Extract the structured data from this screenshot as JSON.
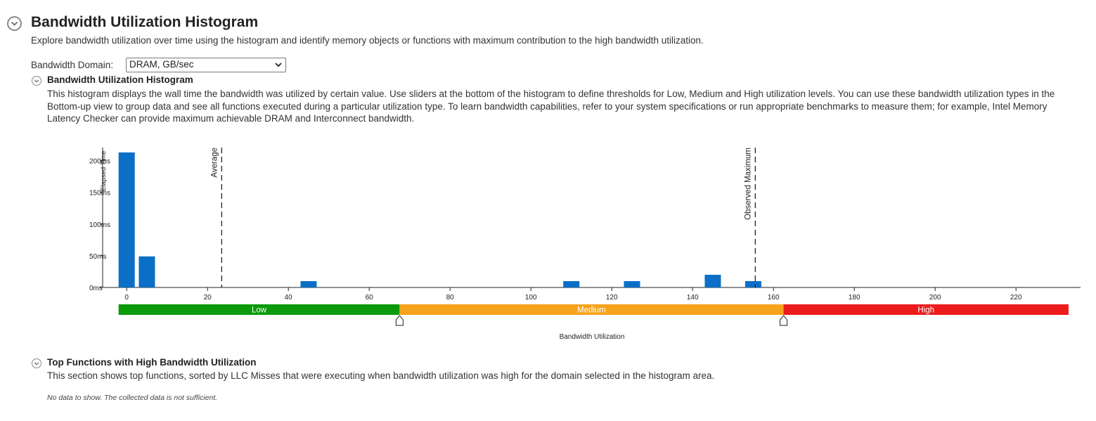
{
  "header": {
    "title": "Bandwidth Utilization Histogram",
    "description": "Explore bandwidth utilization over time using the histogram and identify memory objects or functions with maximum contribution to the high bandwidth utilization."
  },
  "domain": {
    "label": "Bandwidth Domain:",
    "selected": "DRAM, GB/sec"
  },
  "histogram_section": {
    "title": "Bandwidth Utilization Histogram",
    "description": "This histogram displays the wall time the bandwidth was utilized by certain value. Use sliders at the bottom of the histogram to define thresholds for Low, Medium and High utilization levels. You can use these bandwidth utilization types in the Bottom-up view to group data and see all functions executed during a particular utilization type. To learn bandwidth capabilities, refer to your system specifications or run appropriate benchmarks to measure them; for example, Intel Memory Latency Checker can provide maximum achievable DRAM and Interconnect bandwidth."
  },
  "chart_data": {
    "type": "bar",
    "xlabel": "Bandwidth Utilization",
    "ylabel": "Elapsed Time",
    "x_ticks": [
      0,
      20,
      40,
      60,
      80,
      100,
      120,
      140,
      160,
      180,
      200,
      220
    ],
    "y_ticks": [
      "0ms",
      "50ms",
      "100ms",
      "150ms",
      "200ms"
    ],
    "x_range": [
      -3,
      234
    ],
    "y_range_ms": [
      0,
      210
    ],
    "bin_width": 4,
    "bins": [
      {
        "x_start": -2,
        "value_ms": 213
      },
      {
        "x_start": 3,
        "value_ms": 49
      },
      {
        "x_start": 43,
        "value_ms": 10
      },
      {
        "x_start": 108,
        "value_ms": 10
      },
      {
        "x_start": 123,
        "value_ms": 10
      },
      {
        "x_start": 143,
        "value_ms": 20
      },
      {
        "x_start": 153,
        "value_ms": 10
      }
    ],
    "markers": [
      {
        "label": "Average",
        "x": 23.5
      },
      {
        "label": "Observed Maximum",
        "x": 155.5
      }
    ],
    "thresholds": [
      {
        "label": "Low",
        "from": -2,
        "to": 67.5,
        "color": "#0a9a0a"
      },
      {
        "label": "Medium",
        "from": 67.5,
        "to": 162.5,
        "color": "#f7a21b"
      },
      {
        "label": "High",
        "from": 162.5,
        "to": 233,
        "color": "#ec1c1c"
      }
    ],
    "bar_color": "#0b6fc7"
  },
  "top_functions_section": {
    "title": "Top Functions with High Bandwidth Utilization",
    "description": "This section shows top functions, sorted by LLC Misses that were executing when bandwidth utilization was high for the domain selected in the histogram area.",
    "empty_text": "No data to show. The collected data is not sufficient."
  }
}
